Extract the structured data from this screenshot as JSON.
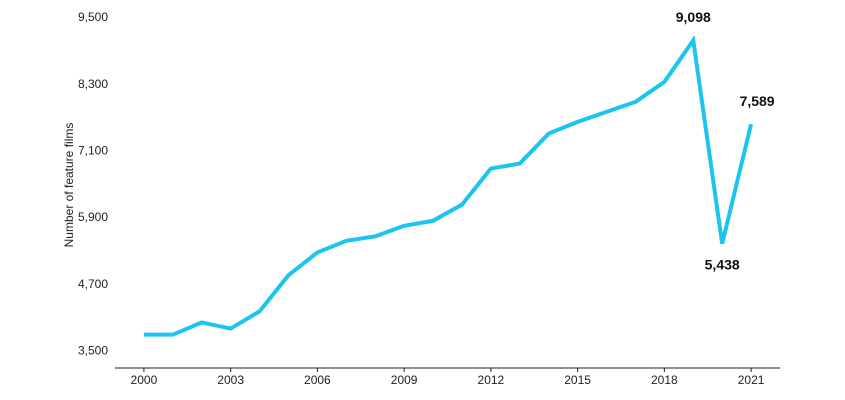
{
  "chart_data": {
    "type": "line",
    "y_label": "Number of feature films",
    "x": [
      2000,
      2001,
      2002,
      2003,
      2004,
      2005,
      2006,
      2007,
      2008,
      2009,
      2010,
      2011,
      2012,
      2013,
      2014,
      2015,
      2016,
      2017,
      2018,
      2019,
      2020,
      2021
    ],
    "series": [
      {
        "name": "Feature films",
        "color": "#1bc5ef",
        "values": [
          3800,
          3800,
          4020,
          3910,
          4220,
          4870,
          5280,
          5490,
          5570,
          5760,
          5850,
          6140,
          6790,
          6880,
          7420,
          7630,
          7810,
          7990,
          8350,
          9098,
          5438,
          7589
        ],
        "value_labels": [
          null,
          null,
          null,
          null,
          null,
          null,
          null,
          null,
          null,
          null,
          null,
          null,
          null,
          null,
          null,
          null,
          null,
          null,
          null,
          "9,098",
          "5,438",
          "7,589"
        ]
      }
    ],
    "xlim": [
      1999,
      2022
    ],
    "xticks": [
      2000,
      2003,
      2006,
      2009,
      2012,
      2015,
      2018,
      2021
    ],
    "ylim": [
      3200,
      9500
    ],
    "yticks": [
      {
        "value": 3500,
        "label": "3,500"
      },
      {
        "value": 4700,
        "label": "4,700"
      },
      {
        "value": 5900,
        "label": "5,900"
      },
      {
        "value": 7100,
        "label": "7,100"
      },
      {
        "value": 8300,
        "label": "8,300"
      },
      {
        "value": 9500,
        "label": "9,500"
      }
    ],
    "grid": false
  }
}
